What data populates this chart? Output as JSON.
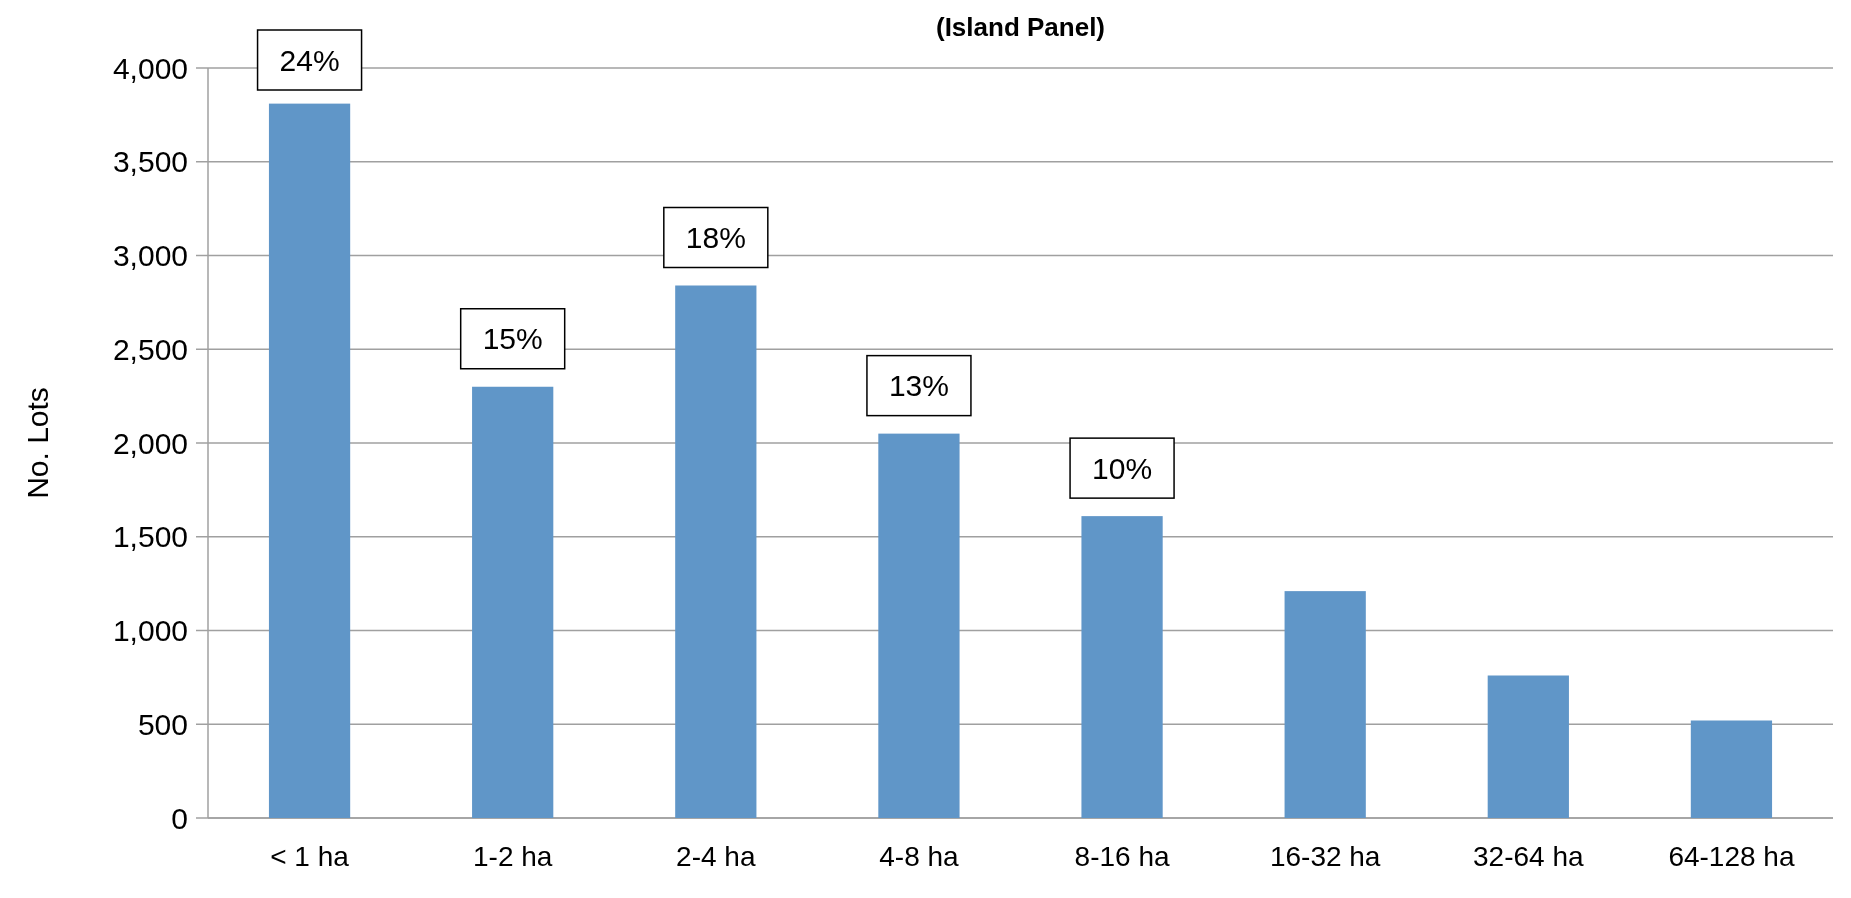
{
  "chart_data": {
    "type": "bar",
    "title": "(Island Panel)",
    "ylabel": "No. Lots",
    "categories": [
      "< 1 ha",
      "1-2 ha",
      "2-4 ha",
      "4-8 ha",
      "8-16 ha",
      "16-32 ha",
      "32-64 ha",
      "64-128 ha"
    ],
    "values": [
      3810,
      2300,
      2840,
      2050,
      1610,
      1210,
      760,
      520
    ],
    "annotations": [
      {
        "text": "24%",
        "x": "< 1 ha",
        "y": 3810
      },
      {
        "text": "15%",
        "x": "1-2 ha",
        "y": 2300
      },
      {
        "text": "18%",
        "x": "2-4 ha",
        "y": 2840
      },
      {
        "text": "13%",
        "x": "4-8 ha",
        "y": 2050
      },
      {
        "text": "10%",
        "x": "8-16 ha",
        "y": 1610
      }
    ],
    "color": "#6096c8",
    "ylim": [
      0,
      4000
    ],
    "yticks": [
      {
        "value": 0,
        "label": "0"
      },
      {
        "value": 500,
        "label": "500"
      },
      {
        "value": 1000,
        "label": "1,000"
      },
      {
        "value": 1500,
        "label": "1,500"
      },
      {
        "value": 2000,
        "label": "2,000"
      },
      {
        "value": 2500,
        "label": "2,500"
      },
      {
        "value": 3000,
        "label": "3,000"
      },
      {
        "value": 3500,
        "label": "3,500"
      },
      {
        "value": 4000,
        "label": "4,000"
      }
    ],
    "grid": "y"
  }
}
